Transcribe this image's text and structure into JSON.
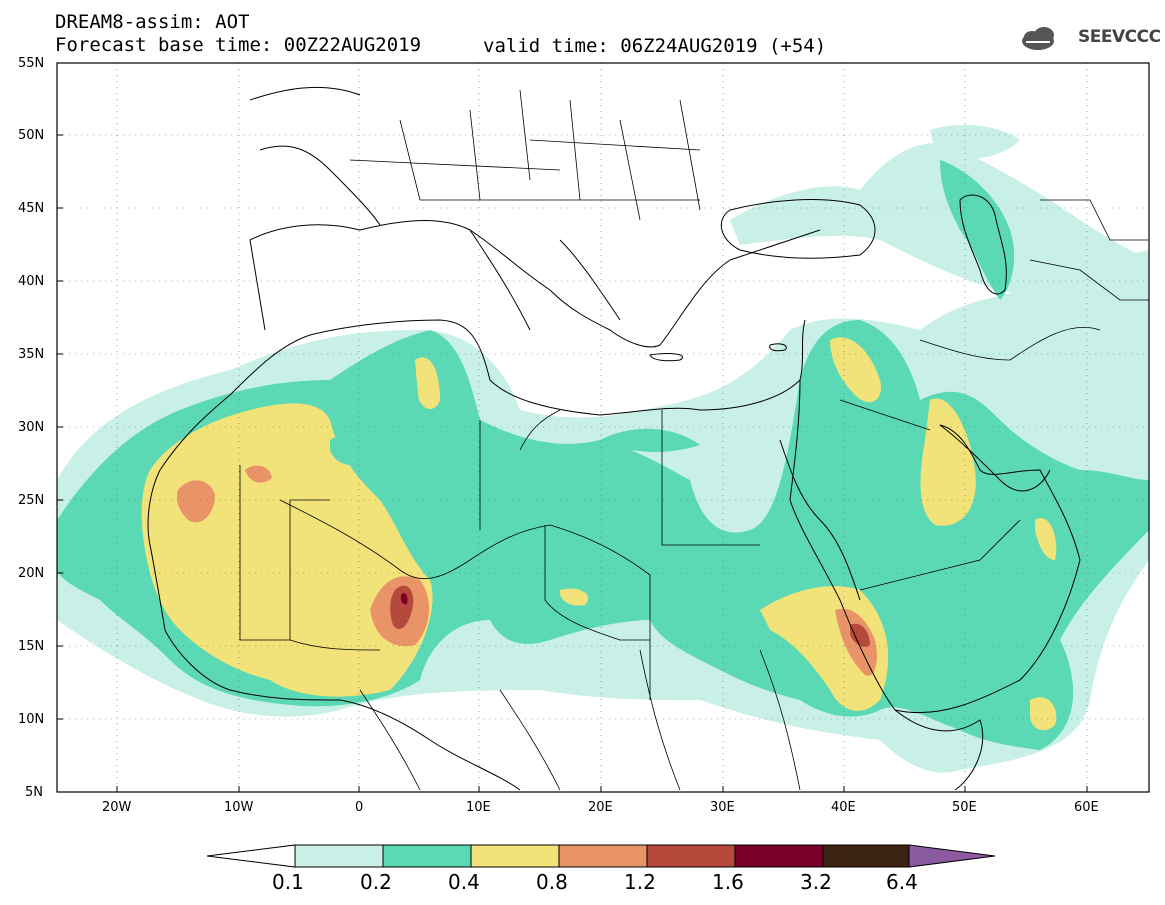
{
  "header": {
    "line1": "DREAM8-assim: AOT",
    "line2": "Forecast base time: 00Z22AUG2019",
    "valid": "valid time: 06Z24AUG2019 (+54)"
  },
  "logo": {
    "text": "SEEVCCC",
    "icon": "cloud-icon"
  },
  "axes": {
    "lat_labels": [
      "55N",
      "50N",
      "45N",
      "40N",
      "35N",
      "30N",
      "25N",
      "20N",
      "15N",
      "10N",
      "5N"
    ],
    "lon_labels": [
      "20W",
      "10W",
      "0",
      "10E",
      "20E",
      "30E",
      "40E",
      "50E",
      "60E"
    ]
  },
  "colorbar": {
    "labels": [
      "0.1",
      "0.2",
      "0.4",
      "0.8",
      "1.2",
      "1.6",
      "3.2",
      "6.4"
    ],
    "colors": [
      "#c8f0e6",
      "#5ad9b4",
      "#f2e27a",
      "#e89468",
      "#b54a3c",
      "#7a0028",
      "#3c2414",
      "#8c5aa0"
    ]
  },
  "map_colors": {
    "lvl1": "#c8f0e6",
    "lvl2": "#5ad9b4",
    "lvl3": "#f2e27a",
    "lvl4": "#e89468",
    "lvl5": "#b54a3c",
    "lvl6": "#7a0028"
  }
}
